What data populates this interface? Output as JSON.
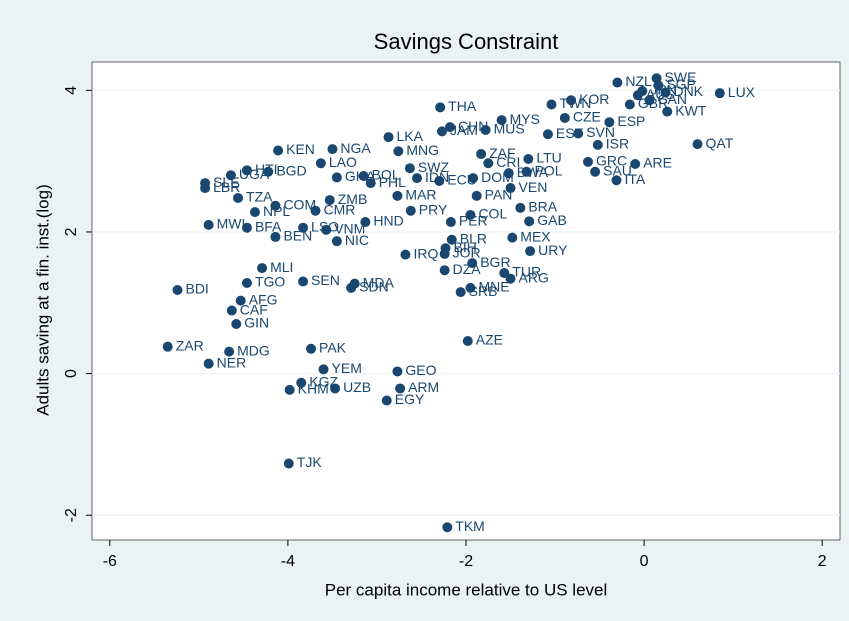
{
  "chart_data": {
    "type": "scatter",
    "title": "Savings Constraint",
    "x_label": "Per capita income relative to US level",
    "y_label": "Adults saving at a fin. inst.(log)",
    "color": "#1a476f",
    "grid": true,
    "xlim": [
      -6.2,
      2.2
    ],
    "ylim": [
      -2.35,
      4.4
    ],
    "xticks": [
      -6,
      -4,
      -2,
      0,
      2
    ],
    "yticks": [
      -2,
      0,
      2,
      4
    ],
    "labels": [
      "THA",
      "KEN",
      "NGA",
      "LKA",
      "MNG",
      "LAO",
      "CHN",
      "JAM",
      "MUS",
      "MYS",
      "ZAF",
      "BOL",
      "GHA",
      "SWZ",
      "PHL",
      "COM",
      "TZA",
      "NPL",
      "ZMB",
      "CMR",
      "MAR",
      "PRY",
      "MWI",
      "BFA",
      "BEN",
      "NIC",
      "LSO",
      "VNM",
      "HND",
      "MLI",
      "TGO",
      "SEN",
      "MDA",
      "SDN",
      "BDI",
      "AFG",
      "CAF",
      "GIN",
      "ZAR",
      "MDG",
      "NER",
      "PAK",
      "YEM",
      "KGZ",
      "KHM",
      "UZB",
      "GEO",
      "ARM",
      "EGY",
      "AZE",
      "TJK",
      "TKM",
      "DZA",
      "BGR",
      "SRB",
      "MNE",
      "TUR",
      "ARG",
      "URY",
      "MEX",
      "BLR",
      "GAB",
      "BRA",
      "PAN",
      "VEN",
      "CRI",
      "LTU",
      "SAU",
      "ITA",
      "ARE",
      "QAT",
      "GRC",
      "ISR",
      "SVN",
      "EST",
      "ESP",
      "CZE",
      "KOR",
      "TWN",
      "KWT",
      "LUX",
      "NZL",
      "SWE",
      "SGP",
      "DNK",
      "AUS",
      "CAN",
      "GBR",
      "JPN",
      "SLE",
      "LBR",
      "UGA",
      "HTI",
      "BGD",
      "IDN",
      "BIH",
      "BWA",
      "POL",
      "PER",
      "ECU",
      "COL",
      "DOM",
      "JOR",
      "IRQ"
    ],
    "x": [
      -2.29,
      -4.11,
      -3.5,
      -2.87,
      -2.76,
      -3.63,
      -2.18,
      -2.27,
      -1.78,
      -1.6,
      -1.83,
      -3.15,
      -3.45,
      -2.63,
      -3.07,
      -4.14,
      -4.56,
      -4.37,
      -3.53,
      -3.69,
      -2.77,
      -2.62,
      -4.89,
      -4.46,
      -4.14,
      -3.45,
      -3.83,
      -3.57,
      -3.13,
      -4.29,
      -4.46,
      -3.83,
      -3.25,
      -3.29,
      -5.24,
      -4.53,
      -4.63,
      -4.58,
      -5.35,
      -4.66,
      -4.89,
      -3.74,
      -3.6,
      -3.85,
      -3.98,
      -3.47,
      -2.77,
      -2.74,
      -2.89,
      -1.98,
      -3.99,
      -2.21,
      -2.24,
      -1.93,
      -2.06,
      -1.95,
      -1.57,
      -1.5,
      -1.28,
      -1.48,
      -2.16,
      -1.29,
      -1.39,
      -1.88,
      -1.5,
      -1.75,
      -1.3,
      -0.55,
      -0.31,
      -0.1,
      0.6,
      -0.63,
      -0.52,
      -0.74,
      -1.08,
      -0.39,
      -0.89,
      -0.82,
      -1.04,
      0.26,
      0.85,
      -0.3,
      0.14,
      0.16,
      0.24,
      -0.07,
      0.06,
      -0.16,
      -0.02,
      -4.93,
      -4.93,
      -4.64,
      -4.46,
      -4.22,
      -2.55,
      -2.23,
      -1.52,
      -1.32,
      -2.17,
      -2.3,
      -1.95,
      -1.92,
      -2.24,
      -2.68
    ],
    "values": [
      3.76,
      3.15,
      3.17,
      3.34,
      3.14,
      2.97,
      3.48,
      3.42,
      3.44,
      3.58,
      3.1,
      2.79,
      2.77,
      2.9,
      2.69,
      2.37,
      2.48,
      2.28,
      2.45,
      2.3,
      2.51,
      2.3,
      2.1,
      2.06,
      1.93,
      1.87,
      2.06,
      2.03,
      2.14,
      1.49,
      1.28,
      1.3,
      1.27,
      1.21,
      1.18,
      1.03,
      0.89,
      0.7,
      0.38,
      0.31,
      0.14,
      0.35,
      0.06,
      -0.13,
      -0.23,
      -0.21,
      0.03,
      -0.21,
      -0.38,
      0.46,
      -1.27,
      -2.17,
      1.46,
      1.56,
      1.15,
      1.21,
      1.42,
      1.34,
      1.73,
      1.92,
      1.89,
      2.15,
      2.34,
      2.51,
      2.62,
      2.97,
      3.03,
      2.85,
      2.73,
      2.96,
      3.24,
      2.99,
      3.23,
      3.39,
      3.38,
      3.55,
      3.61,
      3.86,
      3.8,
      3.7,
      3.96,
      4.11,
      4.17,
      4.07,
      3.97,
      3.93,
      3.86,
      3.8,
      3.99,
      2.69,
      2.62,
      2.8,
      2.87,
      2.85,
      2.76,
      1.77,
      2.83,
      2.85,
      2.14,
      2.72,
      2.24,
      2.76,
      1.69,
      1.68
    ]
  }
}
